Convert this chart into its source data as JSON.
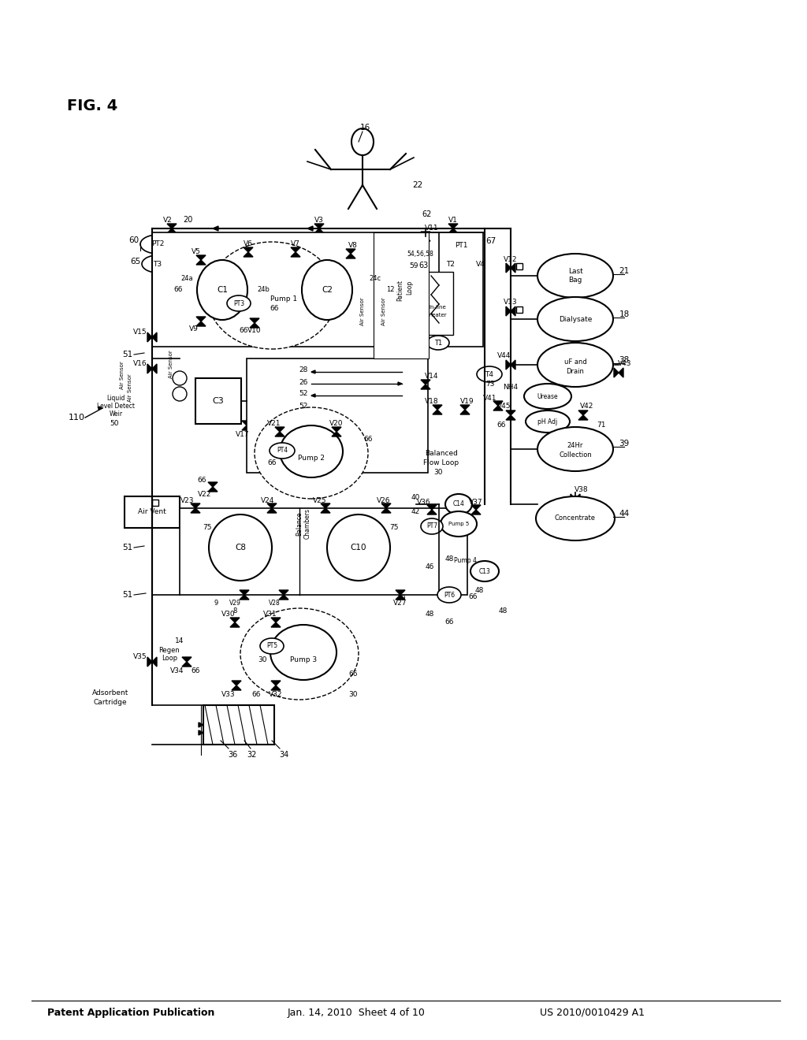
{
  "title_left": "Patent Application Publication",
  "title_center": "Jan. 14, 2010  Sheet 4 of 10",
  "title_right": "US 2010/0010429 A1",
  "fig_label": "FIG. 4",
  "background_color": "#ffffff",
  "line_color": "#000000",
  "text_color": "#000000"
}
